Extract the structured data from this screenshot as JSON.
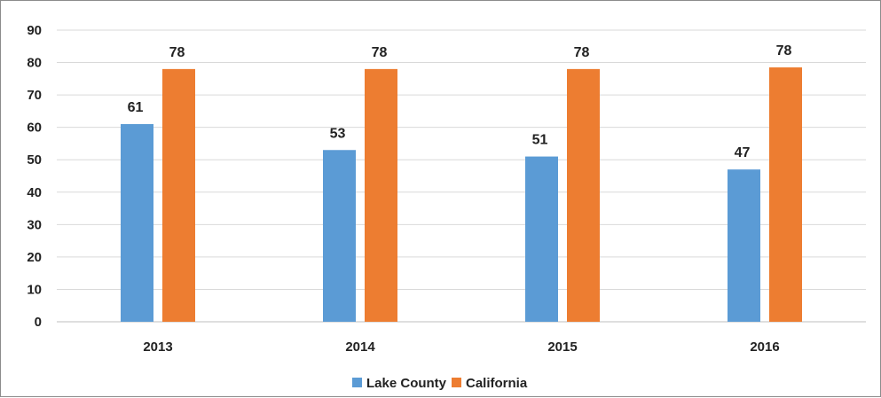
{
  "chart_data": {
    "type": "bar",
    "title": "",
    "xlabel": "",
    "ylabel": "",
    "categories": [
      "2013",
      "2014",
      "2015",
      "2016"
    ],
    "series": [
      {
        "name": "Lake County",
        "color": "#5b9bd5",
        "values": [
          61,
          53,
          51,
          47
        ],
        "labels": [
          "61",
          "53",
          "51",
          "47"
        ]
      },
      {
        "name": "California",
        "color": "#ed7d31",
        "values": [
          78,
          78,
          78,
          78.5
        ],
        "labels": [
          "78",
          "78",
          "78",
          "78"
        ]
      }
    ],
    "ylim": [
      0,
      90
    ],
    "yticks": [
      0,
      10,
      20,
      30,
      40,
      50,
      60,
      70,
      80,
      90
    ],
    "grid": true,
    "legend": "bottom-center"
  }
}
